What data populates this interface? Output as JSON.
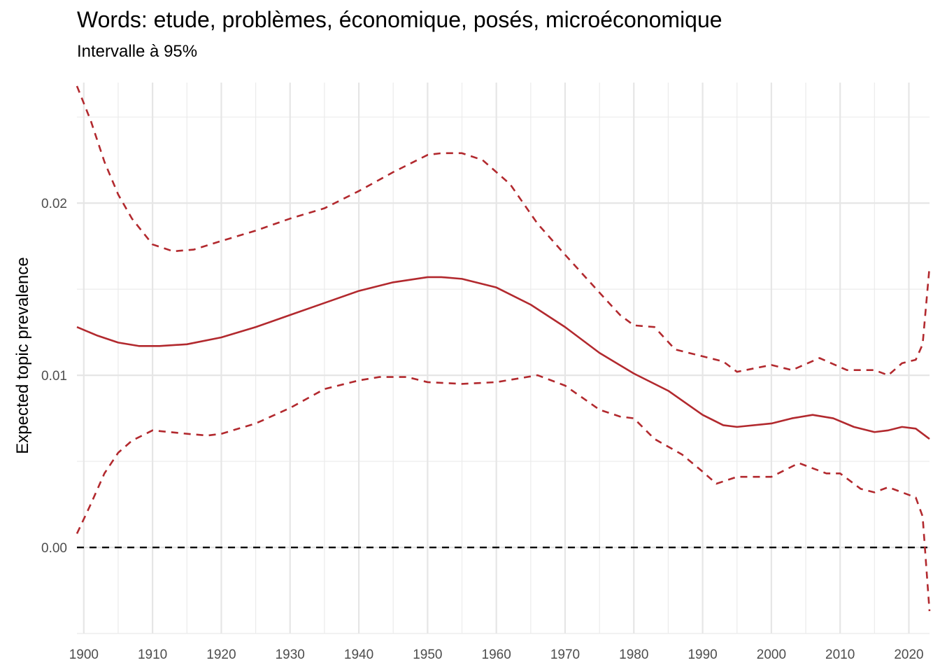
{
  "chart_data": {
    "type": "line",
    "title": "Words: etude, problèmes, économique, posés, microéconomique",
    "subtitle": "Intervalle à 95%",
    "xlabel": "",
    "ylabel": "Expected topic prevalence",
    "xlim": [
      1899,
      2023
    ],
    "ylim": [
      -0.005,
      0.027
    ],
    "x_ticks": [
      1900,
      1910,
      1920,
      1930,
      1940,
      1950,
      1960,
      1970,
      1980,
      1990,
      2000,
      2010,
      2020
    ],
    "y_ticks": [
      0.0,
      0.01,
      0.02
    ],
    "y_tick_labels": [
      "0.00",
      "0.01",
      "0.02"
    ],
    "grid": true,
    "reference_line": {
      "y": 0.0,
      "style": "dashed",
      "color": "#000000"
    },
    "series": [
      {
        "role": "estimate",
        "style": "solid",
        "color": "#B2292E",
        "x": [
          1899,
          1902,
          1905,
          1908,
          1911,
          1915,
          1920,
          1925,
          1930,
          1935,
          1940,
          1945,
          1950,
          1952,
          1955,
          1960,
          1965,
          1970,
          1975,
          1980,
          1985,
          1990,
          1993,
          1995,
          2000,
          2003,
          2006,
          2009,
          2012,
          2015,
          2017,
          2019,
          2021,
          2023
        ],
        "y": [
          0.0128,
          0.0123,
          0.0119,
          0.0117,
          0.0117,
          0.0118,
          0.0122,
          0.0128,
          0.0135,
          0.0142,
          0.0149,
          0.0154,
          0.0157,
          0.0157,
          0.0156,
          0.0151,
          0.0141,
          0.0128,
          0.0113,
          0.0101,
          0.0091,
          0.0077,
          0.0071,
          0.007,
          0.0072,
          0.0075,
          0.0077,
          0.0075,
          0.007,
          0.0067,
          0.0068,
          0.007,
          0.0069,
          0.0063
        ]
      },
      {
        "role": "upper_95",
        "style": "dashed",
        "color": "#B2292E",
        "x": [
          1899,
          1901,
          1903,
          1905,
          1907,
          1910,
          1913,
          1916,
          1920,
          1925,
          1930,
          1935,
          1940,
          1945,
          1950,
          1952,
          1955,
          1958,
          1962,
          1966,
          1970,
          1975,
          1978,
          1980,
          1983,
          1986,
          1990,
          1993,
          1995,
          2000,
          2003,
          2007,
          2011,
          2015,
          2017,
          2019,
          2021,
          2022,
          2023
        ],
        "y": [
          0.0268,
          0.0248,
          0.0224,
          0.0205,
          0.0191,
          0.0176,
          0.0172,
          0.0173,
          0.0178,
          0.0184,
          0.0191,
          0.0197,
          0.0207,
          0.0218,
          0.0228,
          0.0229,
          0.0229,
          0.0225,
          0.0211,
          0.0188,
          0.017,
          0.0148,
          0.0135,
          0.0129,
          0.0128,
          0.0115,
          0.0111,
          0.0108,
          0.0102,
          0.0106,
          0.0103,
          0.011,
          0.0103,
          0.0103,
          0.01,
          0.0107,
          0.0109,
          0.0118,
          0.0163
        ]
      },
      {
        "role": "lower_95",
        "style": "dashed",
        "color": "#B2292E",
        "x": [
          1899,
          1901,
          1903,
          1905,
          1907,
          1910,
          1915,
          1918,
          1920,
          1925,
          1930,
          1935,
          1940,
          1943,
          1947,
          1950,
          1955,
          1960,
          1966,
          1970,
          1975,
          1978,
          1980,
          1983,
          1987,
          1990,
          1992,
          1995,
          2000,
          2002,
          2004,
          2008,
          2010,
          2013,
          2015,
          2017,
          2019,
          2021,
          2022,
          2023
        ],
        "y": [
          0.0008,
          0.0025,
          0.0043,
          0.0055,
          0.0062,
          0.0068,
          0.0066,
          0.0065,
          0.0066,
          0.0072,
          0.0081,
          0.0092,
          0.0097,
          0.0099,
          0.0099,
          0.0096,
          0.0095,
          0.0096,
          0.01,
          0.0094,
          0.008,
          0.0076,
          0.0075,
          0.0063,
          0.0054,
          0.0044,
          0.0037,
          0.0041,
          0.0041,
          0.0045,
          0.0049,
          0.0043,
          0.0043,
          0.0034,
          0.0032,
          0.0035,
          0.0032,
          0.0029,
          0.0018,
          -0.0037
        ]
      }
    ]
  }
}
